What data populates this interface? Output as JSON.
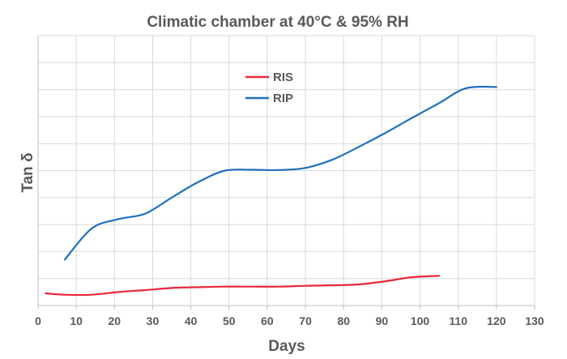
{
  "chart_data": {
    "type": "line",
    "title": "Climatic chamber at 40°C & 95% RH",
    "xlabel": "Days",
    "ylabel": "Tan δ",
    "xlim": [
      0,
      130
    ],
    "ylim": [
      0,
      10
    ],
    "x_ticks": [
      "0",
      "10",
      "20",
      "30",
      "40",
      "50",
      "60",
      "70",
      "80",
      "90",
      "100",
      "110",
      "120",
      "130"
    ],
    "y_ticks_shown": false,
    "grid": true,
    "legend_placement": "top-center",
    "series": [
      {
        "name": "RIS",
        "color": "#e8283a",
        "x": [
          2,
          7,
          14,
          21,
          28,
          35,
          42,
          49,
          56,
          63,
          70,
          77,
          84,
          91,
          98,
          105
        ],
        "y": [
          0.45,
          0.4,
          0.4,
          0.5,
          0.57,
          0.65,
          0.68,
          0.7,
          0.7,
          0.7,
          0.73,
          0.75,
          0.78,
          0.9,
          1.05,
          1.1
        ]
      },
      {
        "name": "RIP",
        "color": "#1f6fbf",
        "x": [
          7,
          14,
          21,
          28,
          35,
          42,
          49,
          56,
          63,
          70,
          77,
          84,
          91,
          98,
          105,
          112,
          120
        ],
        "y": [
          1.7,
          2.85,
          3.2,
          3.4,
          4.0,
          4.58,
          5.0,
          5.03,
          5.02,
          5.1,
          5.4,
          5.88,
          6.4,
          6.96,
          7.5,
          8.05,
          8.1
        ]
      }
    ]
  }
}
